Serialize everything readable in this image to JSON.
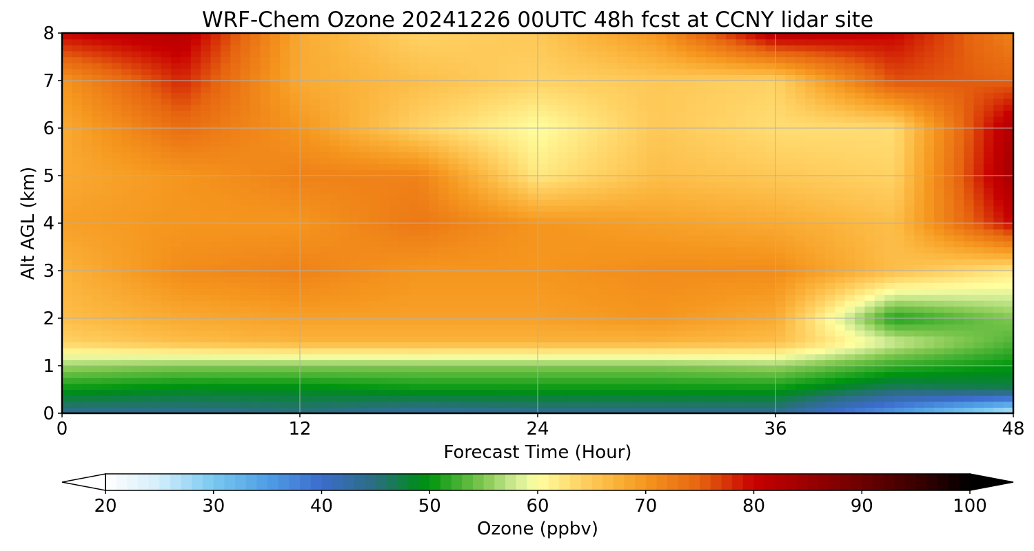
{
  "chart_data": {
    "type": "heatmap",
    "title": "WRF-Chem Ozone  20241226 00UTC 48h fcst at CCNY lidar site",
    "xlabel": "Forecast Time (Hour)",
    "ylabel": "Alt AGL (km)",
    "xlim": [
      0,
      48
    ],
    "ylim": [
      0,
      8
    ],
    "x_ticks": [
      0,
      12,
      24,
      36,
      48
    ],
    "y_ticks": [
      0,
      1,
      2,
      3,
      4,
      5,
      6,
      7,
      8
    ],
    "grid": true,
    "x": [
      0,
      6,
      12,
      18,
      24,
      30,
      36,
      42,
      48
    ],
    "y": [
      0,
      0.5,
      1,
      1.5,
      2,
      3,
      4,
      5,
      6,
      7,
      8
    ],
    "z": [
      [
        44,
        44,
        45,
        43,
        44,
        44,
        44,
        35,
        25
      ],
      [
        50,
        49,
        49,
        50,
        50,
        50,
        50,
        46,
        47
      ],
      [
        56,
        55,
        55,
        55,
        55,
        55,
        56,
        52,
        50
      ],
      [
        64,
        66,
        67,
        67,
        67,
        67,
        66,
        58,
        53
      ],
      [
        66,
        68,
        69,
        69,
        69,
        70,
        68,
        51,
        55
      ],
      [
        67,
        71,
        72,
        70,
        70,
        71,
        71,
        66,
        62
      ],
      [
        69,
        70,
        70,
        73,
        70,
        69,
        68,
        66,
        80
      ],
      [
        68,
        70,
        72,
        72,
        62,
        66,
        65,
        64,
        84
      ],
      [
        68,
        74,
        70,
        64,
        60,
        65,
        63,
        63,
        83
      ],
      [
        70,
        78,
        68,
        66,
        64,
        65,
        64,
        76,
        75
      ],
      [
        80,
        82,
        68,
        64,
        65,
        70,
        82,
        80,
        72
      ]
    ],
    "colorbar": {
      "label": "Ozone  (ppbv)",
      "min": 20,
      "max": 100,
      "ticks": [
        20,
        30,
        40,
        50,
        60,
        70,
        80,
        90,
        100
      ],
      "extend": "both"
    },
    "colormap": [
      [
        20,
        "#ffffff"
      ],
      [
        25,
        "#d2eefb"
      ],
      [
        30,
        "#78c8f0"
      ],
      [
        35,
        "#4f9ee6"
      ],
      [
        40,
        "#3c6ccc"
      ],
      [
        45,
        "#2a6e80"
      ],
      [
        49,
        "#008a1e"
      ],
      [
        50,
        "#00960f"
      ],
      [
        55,
        "#82c850"
      ],
      [
        58,
        "#d2ec96"
      ],
      [
        60,
        "#ffffa0"
      ],
      [
        64,
        "#ffd264"
      ],
      [
        67,
        "#fbb43c"
      ],
      [
        70,
        "#f5961e"
      ],
      [
        75,
        "#e6640f"
      ],
      [
        80,
        "#c80000"
      ],
      [
        88,
        "#800000"
      ],
      [
        95,
        "#3c0000"
      ],
      [
        100,
        "#000000"
      ]
    ]
  }
}
